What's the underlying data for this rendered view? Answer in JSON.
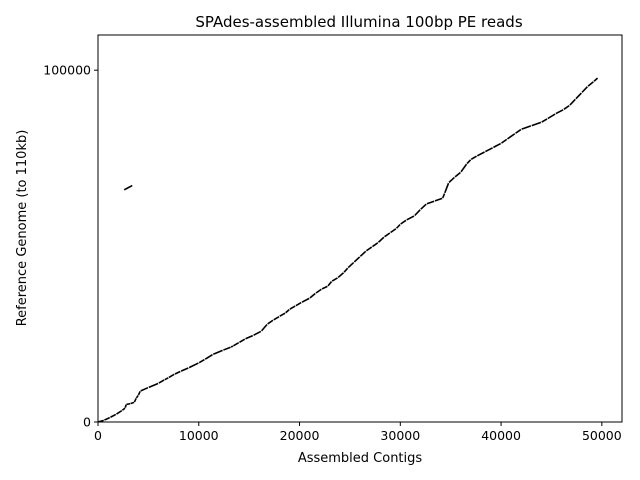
{
  "chart_data": {
    "type": "line",
    "title": "SPAdes-assembled Illumina 100bp PE reads",
    "xlabel": "Assembled Contigs",
    "ylabel": "Reference Genome (to 110kb)",
    "xlim": [
      0,
      52000
    ],
    "ylim": [
      0,
      110000
    ],
    "x_ticks": [
      0,
      10000,
      20000,
      30000,
      40000,
      50000
    ],
    "x_tick_labels": [
      "0",
      "10000",
      "20000",
      "30000",
      "40000",
      "50000"
    ],
    "y_ticks": [
      0,
      100000
    ],
    "y_tick_labels": [
      "0",
      "100000"
    ],
    "grid": false,
    "legend": "none",
    "line_color": "#000000",
    "points": [
      [
        0,
        0
      ],
      [
        600,
        500
      ],
      [
        1200,
        1300
      ],
      [
        1800,
        2200
      ],
      [
        2400,
        3300
      ],
      [
        2700,
        4000
      ],
      [
        2800,
        5000
      ],
      [
        3200,
        5200
      ],
      [
        3600,
        5600
      ],
      [
        3800,
        6800
      ],
      [
        4000,
        7600
      ],
      [
        4200,
        8800
      ],
      [
        5000,
        9800
      ],
      [
        6000,
        11000
      ],
      [
        6600,
        12000
      ],
      [
        7000,
        12600
      ],
      [
        7600,
        13600
      ],
      [
        8200,
        14400
      ],
      [
        9000,
        15400
      ],
      [
        10000,
        16800
      ],
      [
        10600,
        17800
      ],
      [
        11400,
        19200
      ],
      [
        12400,
        20400
      ],
      [
        13200,
        21300
      ],
      [
        13400,
        21600
      ],
      [
        14000,
        22600
      ],
      [
        14600,
        23600
      ],
      [
        15400,
        24600
      ],
      [
        16200,
        25800
      ],
      [
        16800,
        27800
      ],
      [
        17400,
        29000
      ],
      [
        18000,
        30000
      ],
      [
        18600,
        31000
      ],
      [
        19000,
        32000
      ],
      [
        19600,
        33000
      ],
      [
        20200,
        34000
      ],
      [
        21000,
        35200
      ],
      [
        21600,
        36600
      ],
      [
        22200,
        37800
      ],
      [
        22800,
        38600
      ],
      [
        23200,
        40000
      ],
      [
        23800,
        41000
      ],
      [
        24400,
        42500
      ],
      [
        24800,
        43800
      ],
      [
        25400,
        45400
      ],
      [
        26000,
        47000
      ],
      [
        26600,
        48600
      ],
      [
        27200,
        49800
      ],
      [
        27800,
        51000
      ],
      [
        28400,
        52600
      ],
      [
        29000,
        53800
      ],
      [
        29600,
        55000
      ],
      [
        30000,
        56200
      ],
      [
        30600,
        57400
      ],
      [
        31400,
        58600
      ],
      [
        32000,
        60400
      ],
      [
        32600,
        62000
      ],
      [
        33400,
        62800
      ],
      [
        34200,
        63600
      ],
      [
        34400,
        65000
      ],
      [
        34800,
        68000
      ],
      [
        35400,
        69600
      ],
      [
        36000,
        71000
      ],
      [
        36600,
        73400
      ],
      [
        37000,
        74600
      ],
      [
        37600,
        75600
      ],
      [
        38400,
        76800
      ],
      [
        39200,
        78000
      ],
      [
        40000,
        79200
      ],
      [
        40600,
        80400
      ],
      [
        41400,
        82000
      ],
      [
        42000,
        83200
      ],
      [
        43000,
        84200
      ],
      [
        44000,
        85200
      ],
      [
        44600,
        86200
      ],
      [
        45400,
        87600
      ],
      [
        46200,
        88800
      ],
      [
        46800,
        90000
      ],
      [
        47400,
        91800
      ],
      [
        48000,
        93600
      ],
      [
        48600,
        95400
      ],
      [
        49200,
        96800
      ],
      [
        49600,
        97800
      ]
    ],
    "outlier_segment": [
      [
        2600,
        66000
      ],
      [
        3400,
        67200
      ]
    ]
  }
}
